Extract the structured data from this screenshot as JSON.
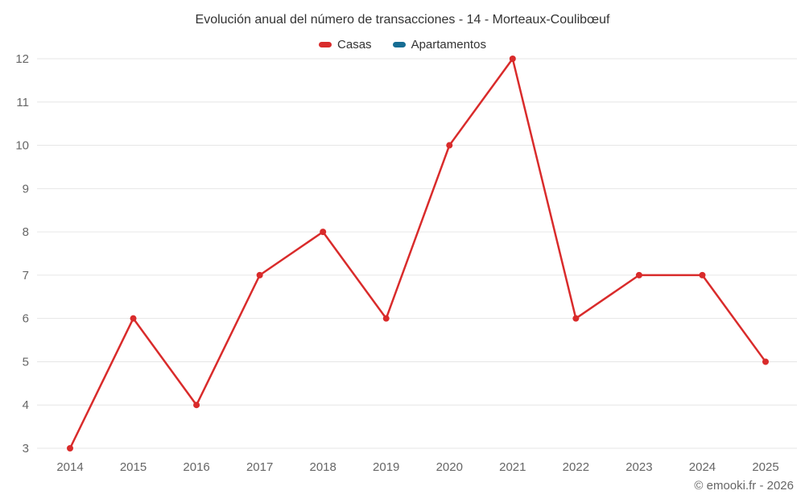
{
  "title": "Evolución anual del número de transacciones - 14 - Morteaux-Coulibœuf",
  "legend": [
    {
      "label": "Casas",
      "color": "#d92b2b"
    },
    {
      "label": "Apartamentos",
      "color": "#176d93"
    }
  ],
  "copyright": "© emooki.fr - 2026",
  "colors": {
    "grid": "#e6e6e6",
    "axis_text": "#666666",
    "title_text": "#333333"
  },
  "chart_data": {
    "type": "line",
    "title": "Evolución anual del número de transacciones - 14 - Morteaux-Coulibœuf",
    "categories": [
      "2014",
      "2015",
      "2016",
      "2017",
      "2018",
      "2019",
      "2020",
      "2021",
      "2022",
      "2023",
      "2024",
      "2025"
    ],
    "series": [
      {
        "name": "Casas",
        "color": "#d92b2b",
        "values": [
          3,
          6,
          4,
          7,
          8,
          6,
          10,
          12,
          6,
          7,
          7,
          5
        ]
      },
      {
        "name": "Apartamentos",
        "color": "#176d93",
        "values": []
      }
    ],
    "xlabel": "",
    "ylabel": "",
    "ylim": [
      3,
      12
    ],
    "ytick_step": 1,
    "grid": "horizontal",
    "legend_position": "top",
    "marker_radius": 4,
    "line_width": 2.5
  }
}
